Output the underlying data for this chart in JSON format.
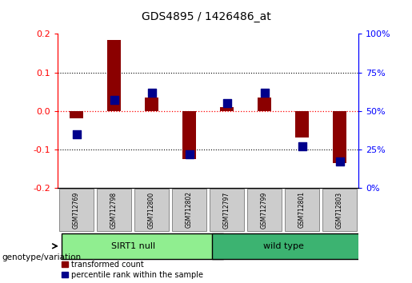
{
  "title": "GDS4895 / 1426486_at",
  "samples": [
    "GSM712769",
    "GSM712798",
    "GSM712800",
    "GSM712802",
    "GSM712797",
    "GSM712799",
    "GSM712801",
    "GSM712803"
  ],
  "transformed_count": [
    -0.02,
    0.185,
    0.035,
    -0.125,
    0.01,
    0.035,
    -0.07,
    -0.135
  ],
  "percentile_rank": [
    35,
    57,
    62,
    22,
    55,
    62,
    27,
    17
  ],
  "groups": [
    {
      "label": "SIRT1 null",
      "start": 0,
      "end": 4,
      "color": "#90EE90"
    },
    {
      "label": "wild type",
      "start": 4,
      "end": 8,
      "color": "#3CB371"
    }
  ],
  "ylim_left": [
    -0.2,
    0.2
  ],
  "ylim_right": [
    0,
    100
  ],
  "yticks_left": [
    -0.2,
    -0.1,
    0.0,
    0.1,
    0.2
  ],
  "yticks_right": [
    0,
    25,
    50,
    75,
    100
  ],
  "bar_color": "#8B0000",
  "dot_color": "#00008B",
  "legend_transformed": "transformed count",
  "legend_percentile": "percentile rank within the sample",
  "genotype_label": "genotype/variation"
}
